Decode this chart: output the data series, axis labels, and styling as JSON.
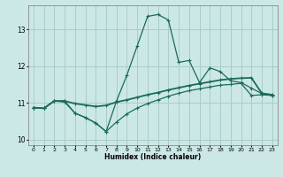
{
  "title": "",
  "xlabel": "Humidex (Indice chaleur)",
  "bg_color": "#cce8e6",
  "grid_color": "#aaccca",
  "line_color": "#1a6b5a",
  "xlim": [
    -0.5,
    23.5
  ],
  "ylim": [
    9.85,
    13.65
  ],
  "xticks": [
    0,
    1,
    2,
    3,
    4,
    5,
    6,
    7,
    8,
    9,
    10,
    11,
    12,
    13,
    14,
    15,
    16,
    17,
    18,
    19,
    20,
    21,
    22,
    23
  ],
  "yticks": [
    10,
    11,
    12,
    13
  ],
  "curve1_x": [
    0,
    1,
    2,
    3,
    4,
    5,
    6,
    7,
    8,
    9,
    10,
    11,
    12,
    13,
    14,
    15,
    16,
    17,
    18,
    19,
    20,
    21,
    22,
    23
  ],
  "curve1_y": [
    10.87,
    10.85,
    11.05,
    11.05,
    10.72,
    10.6,
    10.45,
    10.22,
    11.05,
    11.75,
    12.55,
    13.35,
    13.4,
    13.25,
    12.1,
    12.15,
    11.55,
    11.95,
    11.85,
    11.6,
    11.55,
    11.4,
    11.25,
    11.2
  ],
  "curve2_x": [
    0,
    1,
    2,
    3,
    4,
    5,
    6,
    7,
    8,
    9,
    10,
    11,
    12,
    13,
    14,
    15,
    16,
    17,
    18,
    19,
    20,
    21,
    22,
    23
  ],
  "curve2_y": [
    10.87,
    10.85,
    11.05,
    11.05,
    10.98,
    10.94,
    10.9,
    10.93,
    11.02,
    11.08,
    11.15,
    11.22,
    11.28,
    11.35,
    11.41,
    11.47,
    11.52,
    11.57,
    11.62,
    11.65,
    11.67,
    11.68,
    11.26,
    11.22
  ],
  "curve3_x": [
    0,
    1,
    2,
    3,
    4,
    5,
    6,
    7,
    8,
    9,
    10,
    11,
    12,
    13,
    14,
    15,
    16,
    17,
    18,
    19,
    20,
    21,
    22,
    23
  ],
  "curve3_y": [
    10.87,
    10.85,
    11.05,
    11.02,
    10.72,
    10.6,
    10.45,
    10.22,
    10.48,
    10.7,
    10.86,
    10.98,
    11.08,
    11.18,
    11.26,
    11.33,
    11.38,
    11.43,
    11.48,
    11.5,
    11.53,
    11.2,
    11.22,
    11.2
  ]
}
